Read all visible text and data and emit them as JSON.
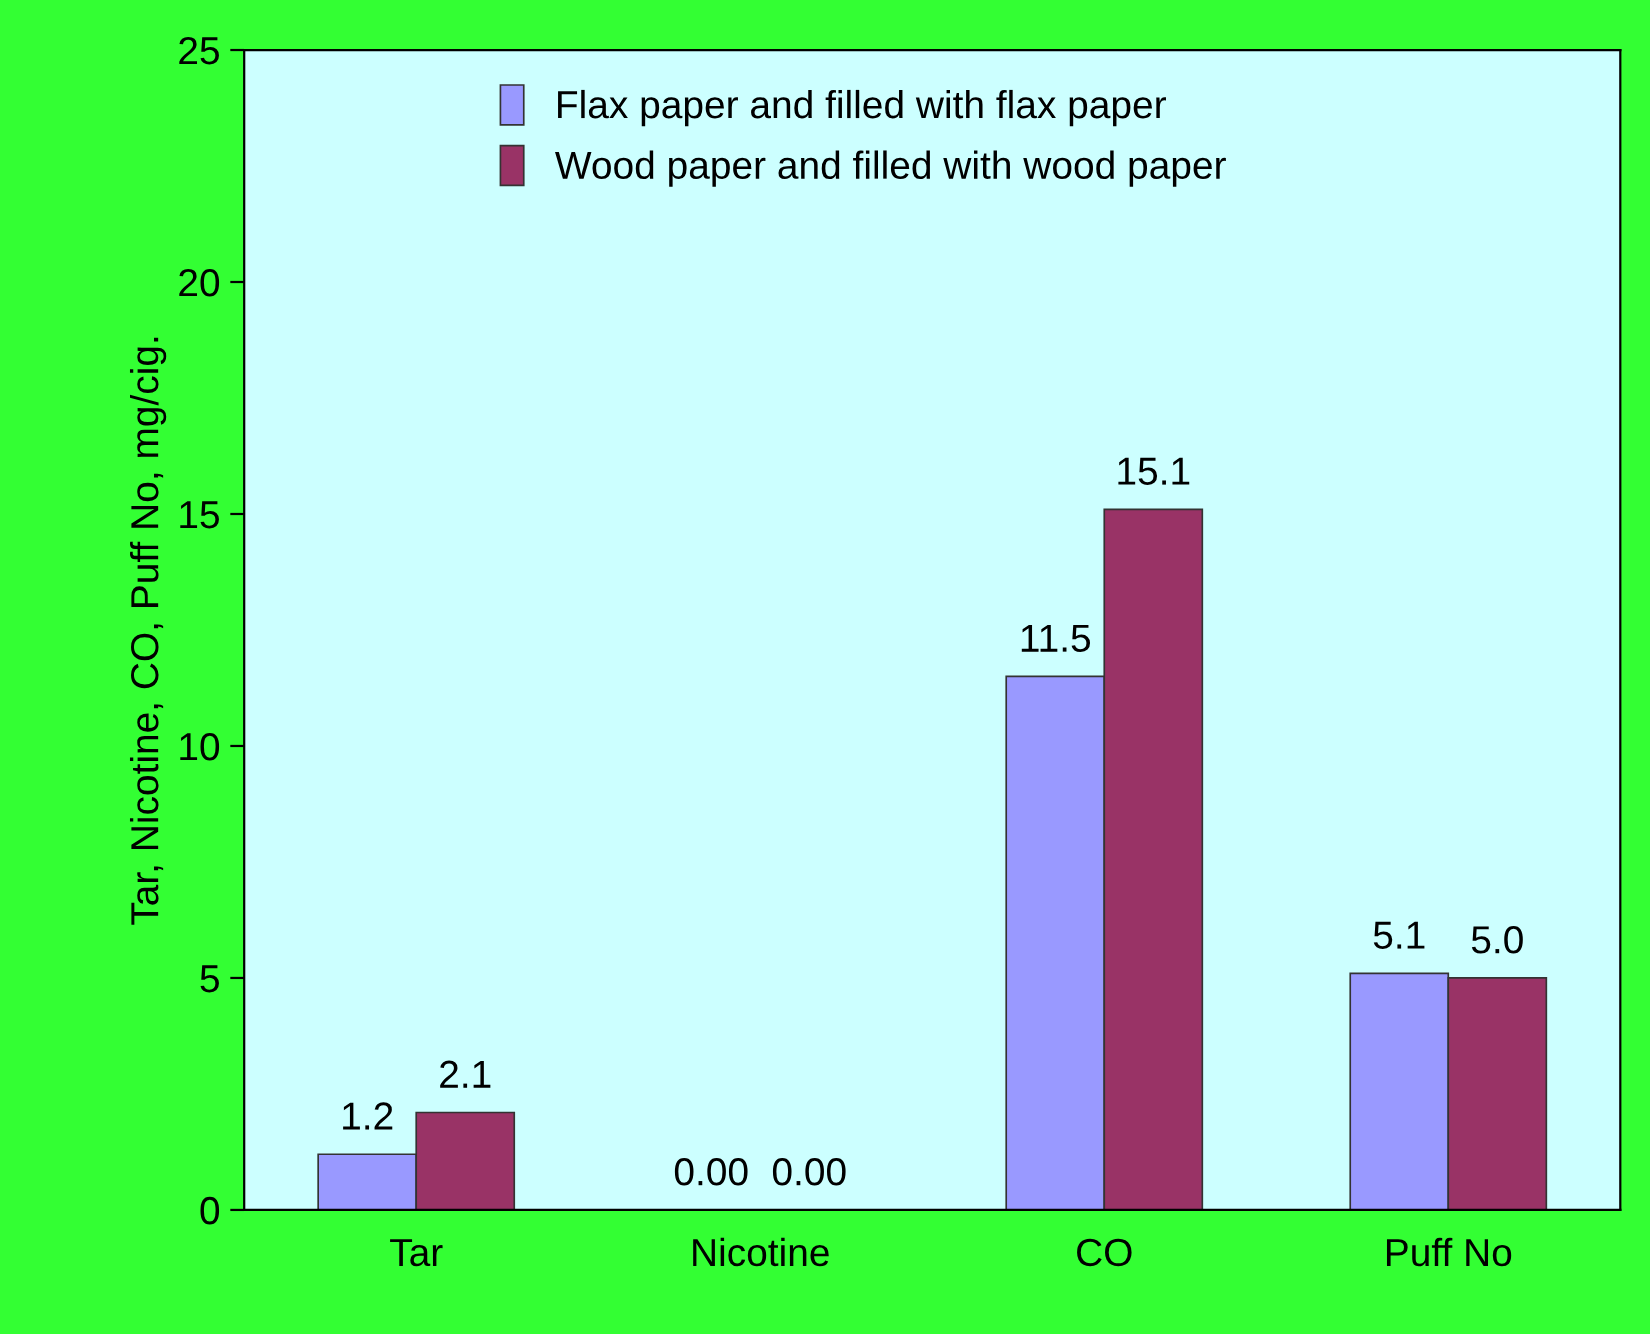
{
  "chart_data": {
    "type": "bar",
    "ylabel": "Tar, Nicotine, CO, Puff No, mg/cig.",
    "categories": [
      "Tar",
      "Nicotine",
      "CO",
      "Puff No"
    ],
    "series": [
      {
        "name": "Flax paper and filled with flax paper",
        "color": "#9999ff",
        "values": [
          1.2,
          0.0,
          11.5,
          5.1
        ],
        "value_labels": [
          "1.2",
          "0.00",
          "11.5",
          "5.1"
        ]
      },
      {
        "name": "Wood paper and filled with wood paper",
        "color": "#993366",
        "values": [
          2.1,
          0.0,
          15.1,
          5.0
        ],
        "value_labels": [
          "2.1",
          "0.00",
          "15.1",
          "5.0"
        ]
      }
    ],
    "ylim": [
      0,
      25
    ],
    "yticks": [
      0,
      5,
      10,
      15,
      20,
      25
    ],
    "grid": false,
    "legend": "top"
  }
}
